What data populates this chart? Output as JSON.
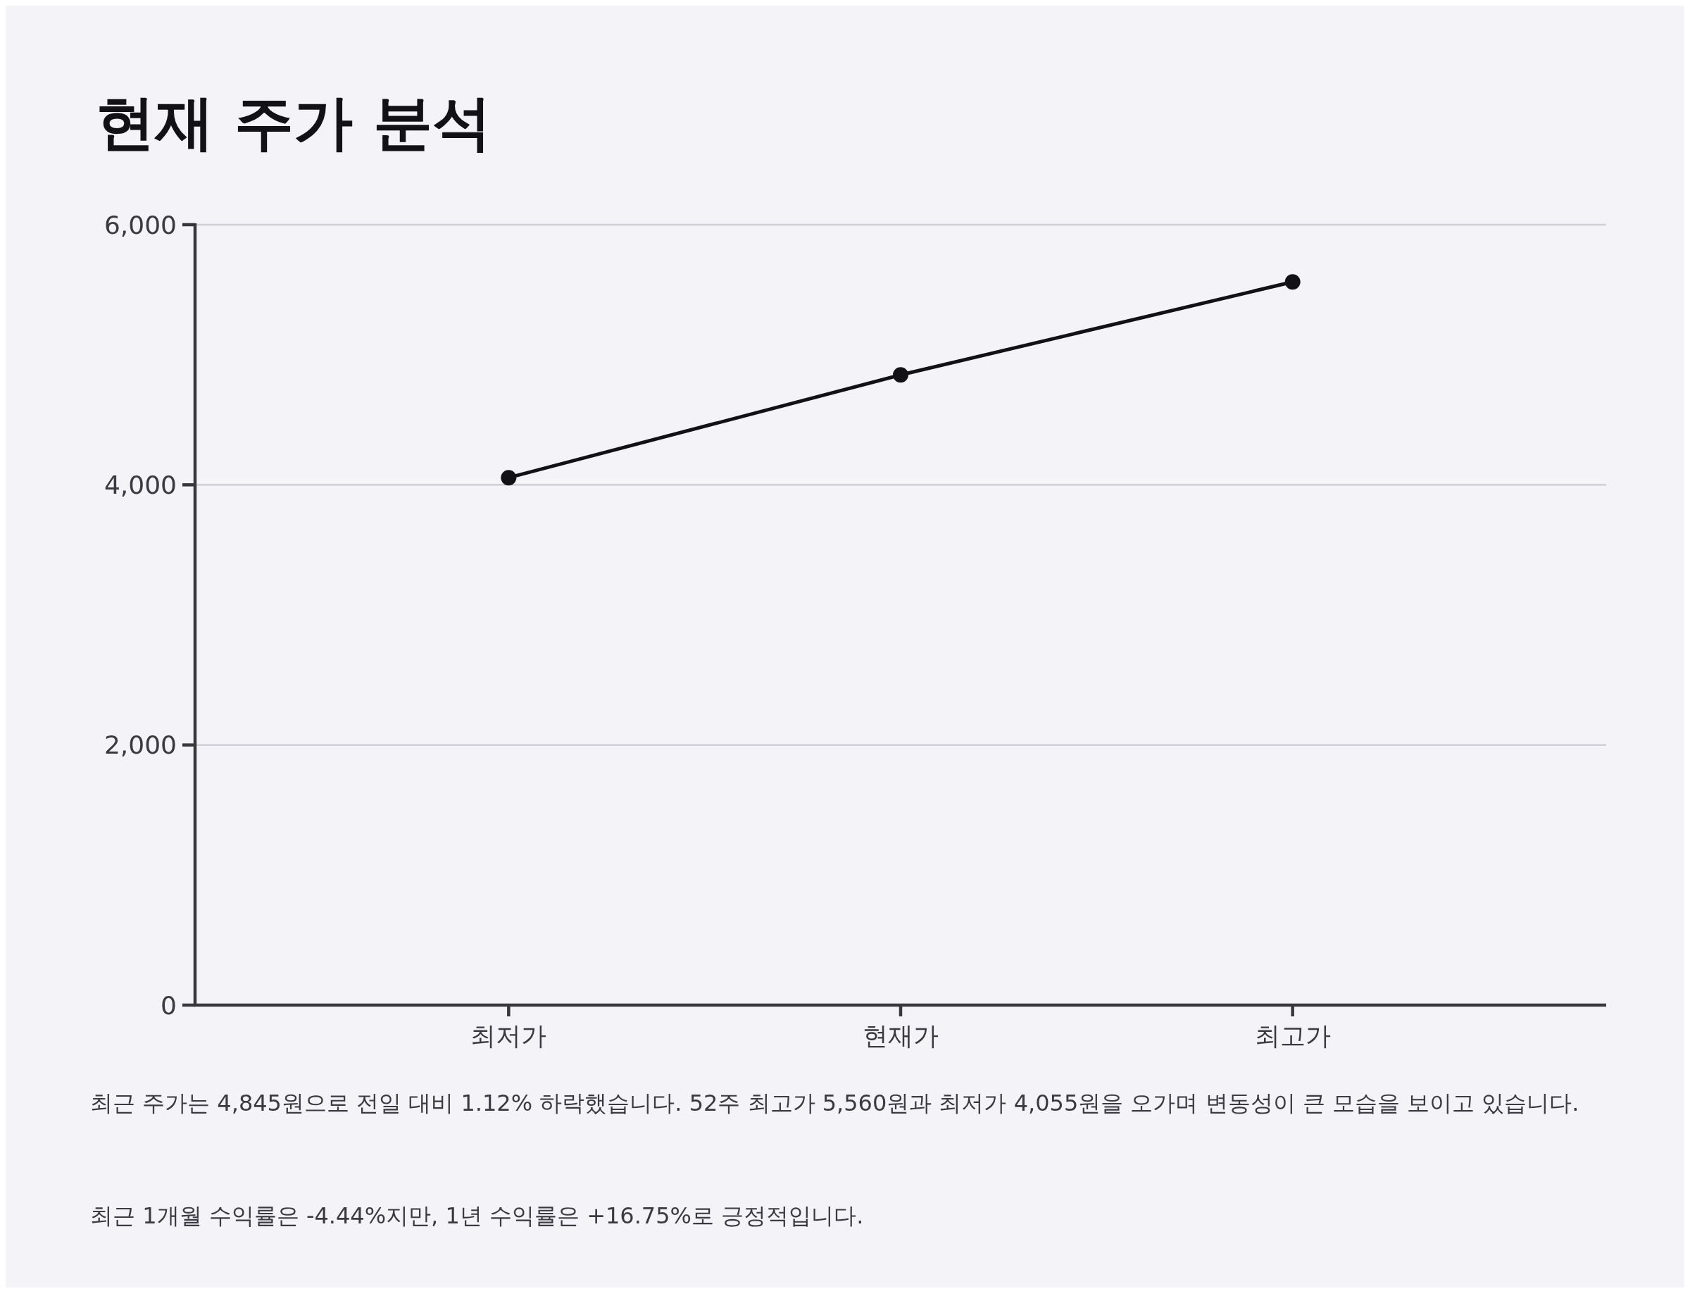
{
  "chart_data": {
    "type": "line",
    "title": "현재 주가 분석",
    "categories": [
      "최저가",
      "현재가",
      "최고가"
    ],
    "series": [
      {
        "color": "#111116",
        "values": [
          4055,
          4845,
          5560
        ]
      }
    ],
    "ylim": [
      0,
      6000
    ],
    "yticks": [
      {
        "value": 0,
        "label": "0"
      },
      {
        "value": 2000,
        "label": "2,000"
      },
      {
        "value": 4000,
        "label": "4,000"
      },
      {
        "value": 6000,
        "label": "6,000"
      }
    ],
    "grid": "y",
    "marker": "circle",
    "line_style": "solid",
    "annotations": [
      "최근 주가는 4,845원으로 전일 대비 1.12% 하락했습니다. 52주 최고가 5,560원과 최저가 4,055원을 오가며 변동성이 큰 모습을 보이고 있습니다.",
      "최근 1개월 수익률은 -4.44%지만, 1년 수익률은 +16.75%로 긍정적입니다."
    ]
  }
}
